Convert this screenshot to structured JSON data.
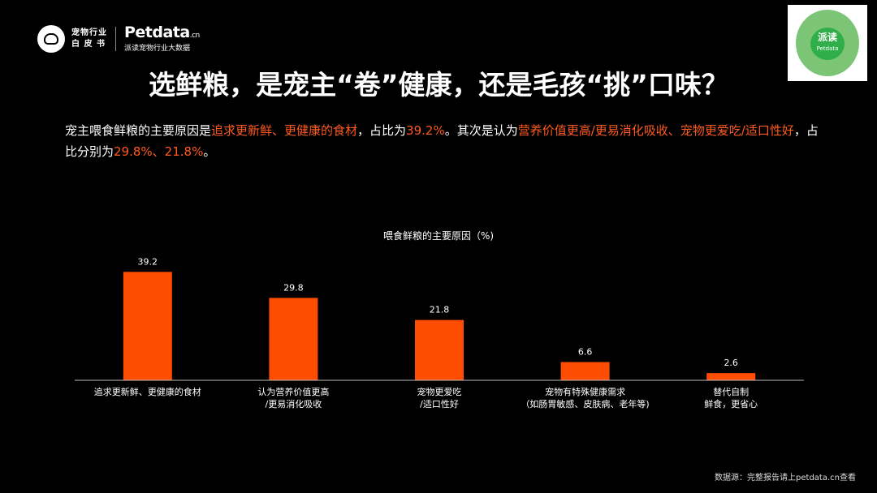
{
  "header": {
    "logo_line1": "宠物行业",
    "logo_line2": "白 皮 书",
    "brand_name": "Petdata",
    "brand_suffix": ".cn",
    "brand_subtitle": "派读宠物行业大数据",
    "qr_badge_text": "派读",
    "qr_badge_sub": "Petdata"
  },
  "title": "选鲜粮，是宠主“卷”健康，还是毛孩“挑”口味？",
  "description": {
    "p1": "宠主喂食鲜粮的主要原因是",
    "h1": "追求更新鲜、更健康的食材",
    "p2": "，占比为",
    "h2": "39.2%",
    "p3": "。其次是认为",
    "h3": "营养价值更高/更易消化吸收、宠物更爱吃/适口性好",
    "p4": "，占比分别为",
    "h4": "29.8%、21.8%",
    "p5": "。"
  },
  "chart_data": {
    "type": "bar",
    "title": "喂食鲜粮的主要原因（%)",
    "categories": [
      [
        "追求更新鲜、更健康的食材"
      ],
      [
        "认为营养价值更高",
        "/更易消化吸收"
      ],
      [
        "宠物更爱吃",
        "/适口性好"
      ],
      [
        "宠物有特殊健康需求",
        "（如肠胃敏感、皮肤病、老年等)"
      ],
      [
        "替代自制",
        "鲜食，更省心"
      ]
    ],
    "values": [
      39.2,
      29.8,
      21.8,
      6.6,
      2.6
    ],
    "value_labels": [
      "39.2",
      "29.8",
      "21.8",
      "6.6",
      "2.6"
    ],
    "bar_color": "#ff4d00",
    "ylim": [
      0,
      40
    ],
    "grid": false,
    "legend": "none"
  },
  "source": "数据源：完整报告请上petdata.cn查看"
}
